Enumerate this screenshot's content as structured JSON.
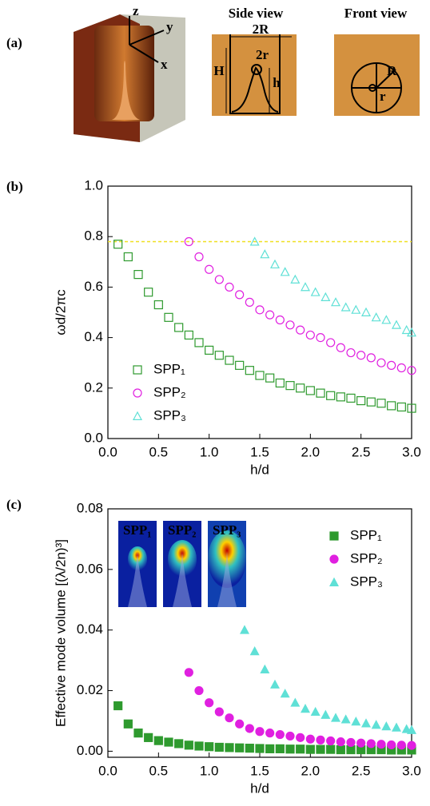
{
  "panel_a": {
    "label": "(a)",
    "axis_z": "z",
    "axis_y": "y",
    "axis_x": "x",
    "side_title": "Side view",
    "front_title": "Front view",
    "dim_2R": "2R",
    "dim_2r": "2r",
    "dim_H": "H",
    "dim_h": "h",
    "dim_R": "R",
    "dim_r": "r"
  },
  "chart_data": [
    {
      "type": "scatter",
      "panel": "(b)",
      "xlabel": "h/d",
      "ylabel": "ωd/2πc",
      "xlim": [
        0,
        3
      ],
      "ylim": [
        0,
        1
      ],
      "xticks": [
        {
          "value": 0,
          "label": "0.0"
        },
        {
          "value": 0.5,
          "label": "0.5"
        },
        {
          "value": 1,
          "label": "1.0"
        },
        {
          "value": 1.5,
          "label": "1.5"
        },
        {
          "value": 2,
          "label": "2.0"
        },
        {
          "value": 2.5,
          "label": "2.5"
        },
        {
          "value": 3,
          "label": "3.0"
        }
      ],
      "yticks": [
        {
          "value": 0,
          "label": "0.0"
        },
        {
          "value": 0.2,
          "label": "0.2"
        },
        {
          "value": 0.4,
          "label": "0.4"
        },
        {
          "value": 0.6,
          "label": "0.6"
        },
        {
          "value": 0.8,
          "label": "0.8"
        },
        {
          "value": 1,
          "label": "1.0"
        }
      ],
      "reference_line": 0.78,
      "reference_color": "#f0e020",
      "legend": "lower left",
      "series": [
        {
          "name": "SPP₁",
          "color": "#2e9a2e",
          "marker": "square",
          "filled": false,
          "x": [
            0.1,
            0.2,
            0.3,
            0.4,
            0.5,
            0.6,
            0.7,
            0.8,
            0.9,
            1.0,
            1.1,
            1.2,
            1.3,
            1.4,
            1.5,
            1.6,
            1.7,
            1.8,
            1.9,
            2.0,
            2.1,
            2.2,
            2.3,
            2.4,
            2.5,
            2.6,
            2.7,
            2.8,
            2.9,
            3.0
          ],
          "values": [
            0.77,
            0.72,
            0.65,
            0.58,
            0.53,
            0.48,
            0.44,
            0.41,
            0.38,
            0.35,
            0.33,
            0.31,
            0.29,
            0.27,
            0.25,
            0.24,
            0.22,
            0.21,
            0.2,
            0.19,
            0.18,
            0.17,
            0.165,
            0.16,
            0.15,
            0.145,
            0.14,
            0.13,
            0.125,
            0.12
          ]
        },
        {
          "name": "SPP₂",
          "color": "#e020e0",
          "marker": "circle",
          "filled": false,
          "x": [
            0.8,
            0.9,
            1.0,
            1.1,
            1.2,
            1.3,
            1.4,
            1.5,
            1.6,
            1.7,
            1.8,
            1.9,
            2.0,
            2.1,
            2.2,
            2.3,
            2.4,
            2.5,
            2.6,
            2.7,
            2.8,
            2.9,
            3.0
          ],
          "values": [
            0.78,
            0.72,
            0.67,
            0.63,
            0.6,
            0.57,
            0.54,
            0.51,
            0.49,
            0.47,
            0.45,
            0.43,
            0.41,
            0.4,
            0.38,
            0.36,
            0.34,
            0.33,
            0.32,
            0.3,
            0.29,
            0.28,
            0.27
          ]
        },
        {
          "name": "SPP₃",
          "color": "#5fe0d6",
          "marker": "triangle",
          "filled": false,
          "x": [
            1.45,
            1.55,
            1.65,
            1.75,
            1.85,
            1.95,
            2.05,
            2.15,
            2.25,
            2.35,
            2.45,
            2.55,
            2.65,
            2.75,
            2.85,
            2.95,
            3.0
          ],
          "values": [
            0.78,
            0.73,
            0.69,
            0.66,
            0.63,
            0.6,
            0.58,
            0.56,
            0.54,
            0.52,
            0.51,
            0.5,
            0.48,
            0.47,
            0.45,
            0.43,
            0.42
          ]
        }
      ]
    },
    {
      "type": "scatter",
      "panel": "(c)",
      "xlabel": "h/d",
      "ylabel": "Effective mode volume [(λ/2n)³]",
      "xlim": [
        0,
        3
      ],
      "ylim": [
        -0.002,
        0.08
      ],
      "xticks": [
        {
          "value": 0,
          "label": "0.0"
        },
        {
          "value": 0.5,
          "label": "0.5"
        },
        {
          "value": 1,
          "label": "1.0"
        },
        {
          "value": 1.5,
          "label": "1.5"
        },
        {
          "value": 2,
          "label": "2.0"
        },
        {
          "value": 2.5,
          "label": "2.5"
        },
        {
          "value": 3,
          "label": "3.0"
        }
      ],
      "yticks": [
        {
          "value": 0,
          "label": "0.00"
        },
        {
          "value": 0.02,
          "label": "0.02"
        },
        {
          "value": 0.04,
          "label": "0.04"
        },
        {
          "value": 0.06,
          "label": "0.06"
        },
        {
          "value": 0.08,
          "label": "0.08"
        }
      ],
      "legend": "upper right",
      "insets": [
        "SPP₁",
        "SPP₂",
        "SPP₃"
      ],
      "series": [
        {
          "name": "SPP₁",
          "color": "#2e9a2e",
          "marker": "square",
          "filled": true,
          "x": [
            0.1,
            0.2,
            0.3,
            0.4,
            0.5,
            0.6,
            0.7,
            0.8,
            0.9,
            1.0,
            1.1,
            1.2,
            1.3,
            1.4,
            1.5,
            1.6,
            1.7,
            1.8,
            1.9,
            2.0,
            2.1,
            2.2,
            2.3,
            2.4,
            2.5,
            2.6,
            2.7,
            2.8,
            2.9,
            3.0
          ],
          "values": [
            0.015,
            0.009,
            0.006,
            0.0045,
            0.0035,
            0.003,
            0.0025,
            0.002,
            0.0017,
            0.0015,
            0.0013,
            0.0012,
            0.0011,
            0.001,
            0.0009,
            0.0008,
            0.0008,
            0.0007,
            0.0007,
            0.0006,
            0.0006,
            0.0006,
            0.0005,
            0.0005,
            0.0005,
            0.0005,
            0.0005,
            0.0004,
            0.0004,
            0.0004
          ]
        },
        {
          "name": "SPP₂",
          "color": "#e020e0",
          "marker": "circle",
          "filled": true,
          "x": [
            0.8,
            0.9,
            1.0,
            1.1,
            1.2,
            1.3,
            1.4,
            1.5,
            1.6,
            1.7,
            1.8,
            1.9,
            2.0,
            2.1,
            2.2,
            2.3,
            2.4,
            2.5,
            2.6,
            2.7,
            2.8,
            2.9,
            3.0
          ],
          "values": [
            0.026,
            0.02,
            0.016,
            0.013,
            0.011,
            0.009,
            0.0075,
            0.0065,
            0.006,
            0.0055,
            0.005,
            0.0045,
            0.004,
            0.0037,
            0.0034,
            0.0031,
            0.0029,
            0.0027,
            0.0025,
            0.0023,
            0.0021,
            0.002,
            0.0019
          ]
        },
        {
          "name": "SPP₃",
          "color": "#5fe0d6",
          "marker": "triangle",
          "filled": true,
          "x": [
            1.35,
            1.45,
            1.55,
            1.65,
            1.75,
            1.85,
            1.95,
            2.05,
            2.15,
            2.25,
            2.35,
            2.45,
            2.55,
            2.65,
            2.75,
            2.85,
            2.95,
            3.0
          ],
          "values": [
            0.04,
            0.033,
            0.027,
            0.022,
            0.019,
            0.016,
            0.014,
            0.013,
            0.012,
            0.011,
            0.0105,
            0.0098,
            0.0092,
            0.0087,
            0.0082,
            0.0078,
            0.0073,
            0.007
          ]
        }
      ]
    }
  ]
}
